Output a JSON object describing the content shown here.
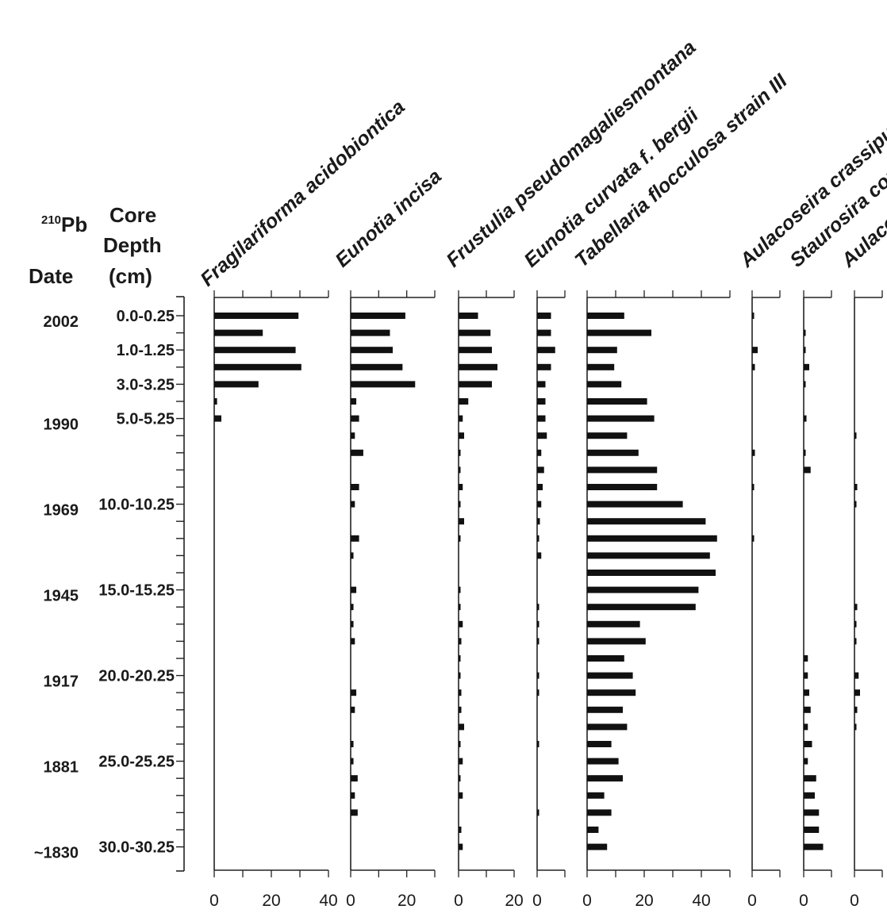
{
  "header": {
    "date_sup": "210",
    "date_pb": "Pb",
    "date_word": "Date",
    "core_line1": "Core",
    "core_line2": "Depth",
    "core_line3": "(cm)"
  },
  "chart_data": {
    "type": "bar",
    "orientation": "horizontal",
    "title": "",
    "xlabel": "",
    "ylabel": "",
    "y_ticks_count": 32,
    "depth_labels": [
      {
        "index": 0,
        "label": "0.0-0.25"
      },
      {
        "index": 2,
        "label": "1.0-1.25"
      },
      {
        "index": 4,
        "label": "3.0-3.25"
      },
      {
        "index": 6,
        "label": "5.0-5.25"
      },
      {
        "index": 11,
        "label": "10.0-10.25"
      },
      {
        "index": 16,
        "label": "15.0-15.25"
      },
      {
        "index": 21,
        "label": "20.0-20.25"
      },
      {
        "index": 26,
        "label": "25.0-25.25"
      },
      {
        "index": 31,
        "label": "30.0-30.25"
      }
    ],
    "date_labels": [
      {
        "index": 0,
        "label": "2002"
      },
      {
        "index": 6,
        "label": "1990"
      },
      {
        "index": 11,
        "label": "1969"
      },
      {
        "index": 16,
        "label": "1945"
      },
      {
        "index": 21,
        "label": "1917"
      },
      {
        "index": 26,
        "label": "1881"
      },
      {
        "index": 31,
        "label": "~1830"
      }
    ],
    "series": [
      {
        "name": "Fragilariforma acidobiontica",
        "xlim": [
          0,
          40
        ],
        "tick_labels": [
          "0",
          "20",
          "40"
        ],
        "values": [
          29.5,
          17,
          28.5,
          30.5,
          15.5,
          1,
          2.5,
          0,
          0,
          0,
          0,
          0,
          0,
          0,
          0,
          0,
          0,
          0,
          0,
          0,
          0,
          0,
          0,
          0,
          0,
          0,
          0,
          0,
          0,
          0,
          0,
          0
        ]
      },
      {
        "name": "Eunotia incisa",
        "xlim": [
          0,
          30
        ],
        "tick_labels": [
          "0",
          "20"
        ],
        "values": [
          19.5,
          14,
          15,
          18.5,
          23,
          2,
          3,
          1.5,
          4.5,
          0,
          3,
          1.5,
          0,
          3,
          1,
          0,
          2,
          1,
          1,
          1.5,
          0,
          0,
          2,
          1.5,
          0,
          1,
          1,
          2.5,
          1.5,
          2.5,
          0,
          0
        ]
      },
      {
        "name": "Frustulia pseudomagaliesmontana",
        "xlim": [
          0,
          20
        ],
        "tick_labels": [
          "0",
          "20"
        ],
        "values": [
          7,
          11.5,
          12,
          14,
          12,
          3.5,
          1.5,
          2,
          0.5,
          0.5,
          1.5,
          0.5,
          2,
          0.5,
          0,
          0,
          0.5,
          0.5,
          1.5,
          1,
          0.5,
          0.5,
          1,
          1,
          2,
          0.5,
          1.5,
          0.5,
          1.5,
          0,
          1,
          1.5
        ]
      },
      {
        "name": "Eunotia curvata f. bergii",
        "xlim": [
          0,
          10
        ],
        "tick_labels": [
          "0"
        ],
        "values": [
          5,
          5,
          6.5,
          5,
          3,
          3,
          3,
          3.5,
          1.5,
          2.5,
          2,
          1.5,
          1,
          0.5,
          1.5,
          0,
          0,
          0.5,
          0.5,
          0.5,
          0,
          0.5,
          0.5,
          0,
          0,
          0.5,
          0,
          0,
          0,
          0.5,
          0,
          0
        ]
      },
      {
        "name": "Tabellaria flocculosa strain III",
        "xlim": [
          0,
          50
        ],
        "tick_labels": [
          "0",
          "20",
          "40"
        ],
        "values": [
          13,
          22.5,
          10.5,
          9.5,
          12,
          21,
          23.5,
          14,
          18,
          24.5,
          24.5,
          33.5,
          41.5,
          45.5,
          43,
          45,
          39,
          38,
          18.5,
          20.5,
          13,
          16,
          17,
          12.5,
          14,
          8.5,
          11,
          12.5,
          6,
          8.5,
          4,
          7
        ]
      },
      {
        "name": "Aulacoseira crassipunctata",
        "xlim": [
          0,
          10
        ],
        "tick_labels": [
          "0"
        ],
        "values": [
          0.5,
          0,
          2,
          1,
          0,
          0,
          0,
          0,
          1,
          0,
          0.5,
          0,
          0,
          0.5,
          0,
          0,
          0,
          0,
          0,
          0,
          0,
          0,
          0,
          0,
          0,
          0,
          0,
          0,
          0,
          0,
          0,
          0
        ]
      },
      {
        "name": "Staurosira construens",
        "xlim": [
          0,
          10
        ],
        "tick_labels": [
          "0"
        ],
        "values": [
          0,
          0.5,
          0.5,
          2,
          0.5,
          0,
          1,
          0,
          0.5,
          2.5,
          0,
          0,
          0,
          0,
          0,
          0,
          0,
          0,
          0,
          0,
          1.5,
          1.5,
          2,
          2.5,
          1.5,
          3,
          1.5,
          4.5,
          4,
          5.5,
          5.5,
          7
        ]
      },
      {
        "name": "Aulacoseira",
        "xlim": [
          0,
          10
        ],
        "tick_labels": [
          "0"
        ],
        "values": [
          0,
          0,
          0,
          0,
          0,
          0,
          0,
          0.5,
          0,
          0,
          1,
          0.5,
          0,
          0,
          0,
          0,
          0,
          1,
          0.5,
          0.5,
          0,
          1.5,
          2,
          1,
          0.5,
          0,
          0,
          0,
          0,
          0,
          0,
          0
        ]
      }
    ]
  }
}
